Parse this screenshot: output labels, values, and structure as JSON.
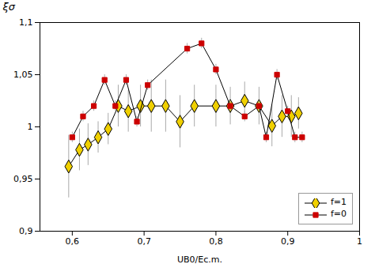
{
  "chart_data": {
    "type": "line",
    "xlabel": "UB0/Ec.m.",
    "ylabel": "ξσ",
    "xlim": [
      0.555,
      1.0
    ],
    "ylim": [
      0.9,
      1.1
    ],
    "xticks": [
      {
        "value": 0.6,
        "label": "0,6"
      },
      {
        "value": 0.7,
        "label": "0,7"
      },
      {
        "value": 0.8,
        "label": "0,8"
      },
      {
        "value": 0.9,
        "label": "0,9"
      },
      1
    ],
    "yticks": [
      {
        "value": 0.9,
        "label": "0,9"
      },
      {
        "value": 0.95,
        "label": "0,95"
      },
      1,
      {
        "value": 1.05,
        "label": "1,05"
      },
      {
        "value": 1.1,
        "label": "1,1"
      }
    ],
    "grid": false,
    "legend": "lower right",
    "color": "black",
    "series": [
      {
        "name": "f=1",
        "color": "#f0d000",
        "marker": "diamond",
        "x": [
          0.595,
          0.61,
          0.622,
          0.636,
          0.65,
          0.664,
          0.678,
          0.695,
          0.71,
          0.73,
          0.75,
          0.77,
          0.8,
          0.82,
          0.84,
          0.86,
          0.878,
          0.892,
          0.905,
          0.915
        ],
        "values": [
          0.962,
          0.978,
          0.983,
          0.99,
          0.998,
          1.02,
          1.015,
          1.02,
          1.02,
          1.02,
          1.005,
          1.02,
          1.02,
          1.02,
          1.025,
          1.02,
          1.001,
          1.01,
          1.01,
          1.013
        ],
        "yerr": [
          0.03,
          0.02,
          0.02,
          0.015,
          0.015,
          0.02,
          0.02,
          0.02,
          0.025,
          0.025,
          0.025,
          0.02,
          0.02,
          0.018,
          0.018,
          0.018,
          0.02,
          0.02,
          0.02,
          0.015
        ]
      },
      {
        "name": "f=0",
        "color": "#cc0000",
        "marker": "square",
        "x": [
          0.6,
          0.615,
          0.63,
          0.645,
          0.66,
          0.675,
          0.69,
          0.705,
          0.76,
          0.78,
          0.8,
          0.82,
          0.84,
          0.86,
          0.87,
          0.885,
          0.9,
          0.91,
          0.92
        ],
        "values": [
          0.99,
          1.01,
          1.02,
          1.045,
          1.02,
          1.045,
          1.005,
          1.04,
          1.075,
          1.08,
          1.055,
          1.02,
          1.01,
          1.02,
          0.99,
          1.05,
          1.015,
          0.99,
          0.99
        ],
        "yerr": [
          0.005,
          0.005,
          0.005,
          0.005,
          0.005,
          0.005,
          0.005,
          0.005,
          0.005,
          0.005,
          0.005,
          0.005,
          0.005,
          0.005,
          0.005,
          0.005,
          0.005,
          0.005,
          0.005
        ]
      }
    ]
  }
}
